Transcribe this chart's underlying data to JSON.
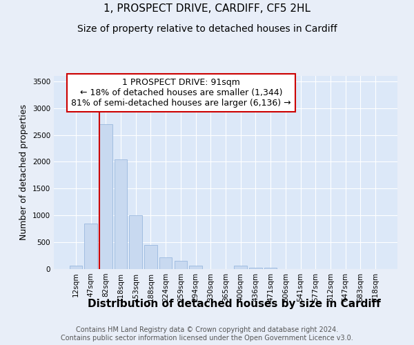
{
  "title_line1": "1, PROSPECT DRIVE, CARDIFF, CF5 2HL",
  "title_line2": "Size of property relative to detached houses in Cardiff",
  "xlabel": "Distribution of detached houses by size in Cardiff",
  "ylabel": "Number of detached properties",
  "bar_labels": [
    "12sqm",
    "47sqm",
    "82sqm",
    "118sqm",
    "153sqm",
    "188sqm",
    "224sqm",
    "259sqm",
    "294sqm",
    "330sqm",
    "365sqm",
    "400sqm",
    "436sqm",
    "471sqm",
    "506sqm",
    "541sqm",
    "577sqm",
    "612sqm",
    "647sqm",
    "683sqm",
    "718sqm"
  ],
  "bar_values": [
    60,
    850,
    2700,
    2050,
    1000,
    450,
    220,
    150,
    60,
    5,
    3,
    60,
    30,
    20,
    5,
    3,
    2,
    2,
    1,
    1,
    1
  ],
  "bar_color": "#c8d9f0",
  "bar_edgecolor": "#99b8de",
  "property_line_x": 2,
  "annotation_title": "1 PROSPECT DRIVE: 91sqm",
  "annotation_line1": "← 18% of detached houses are smaller (1,344)",
  "annotation_line2": "81% of semi-detached houses are larger (6,136) →",
  "vline_color": "#cc0000",
  "annotation_box_color": "#ffffff",
  "annotation_box_edgecolor": "#cc0000",
  "ylim": [
    0,
    3600
  ],
  "yticks": [
    0,
    500,
    1000,
    1500,
    2000,
    2500,
    3000,
    3500
  ],
  "background_color": "#e8eef8",
  "plot_bg_color": "#dce8f8",
  "footer_line1": "Contains HM Land Registry data © Crown copyright and database right 2024.",
  "footer_line2": "Contains public sector information licensed under the Open Government Licence v3.0.",
  "title_fontsize": 11,
  "subtitle_fontsize": 10,
  "tick_fontsize": 7.5,
  "xlabel_fontsize": 11,
  "ylabel_fontsize": 9,
  "annotation_fontsize": 9,
  "footer_fontsize": 7
}
